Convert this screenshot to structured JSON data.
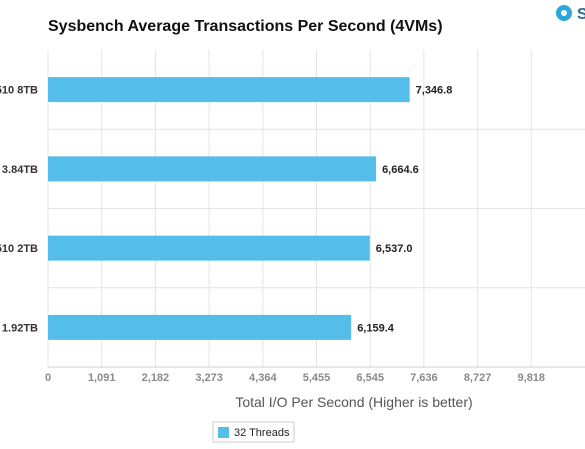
{
  "chart_data": {
    "type": "bar",
    "orientation": "horizontal",
    "title": "Sysbench Average Transactions Per Second (4VMs)",
    "xlabel": "Total I/O Per Second (Higher is better)",
    "ylabel": "",
    "categories": [
      "510 8TB",
      "3.84TB",
      "510 2TB",
      "1.92TB"
    ],
    "series": [
      {
        "name": "32 Threads",
        "values": [
          7346.8,
          6664.6,
          6537.0,
          6159.4
        ],
        "value_labels": [
          "7,346.8",
          "6,664.6",
          "6,537.0",
          "6,159.4"
        ]
      }
    ],
    "xlim": [
      0,
      10909
    ],
    "xticks": [
      0,
      1091,
      2182,
      3273,
      4364,
      5455,
      6545,
      7636,
      8727,
      9818
    ],
    "xtick_labels": [
      "0",
      "1,091",
      "2,182",
      "3,273",
      "4,364",
      "5,455",
      "6,545",
      "7,636",
      "8,727",
      "9,818"
    ],
    "grid": true,
    "legend_position": "bottom-left",
    "colors": {
      "bar": "#55bde9",
      "grid": "#e4e4e4",
      "legend_border": "#cccccc"
    }
  },
  "logo": {
    "letter": "S",
    "icon": "brand-logo-icon",
    "color": "#2aa7dd"
  }
}
